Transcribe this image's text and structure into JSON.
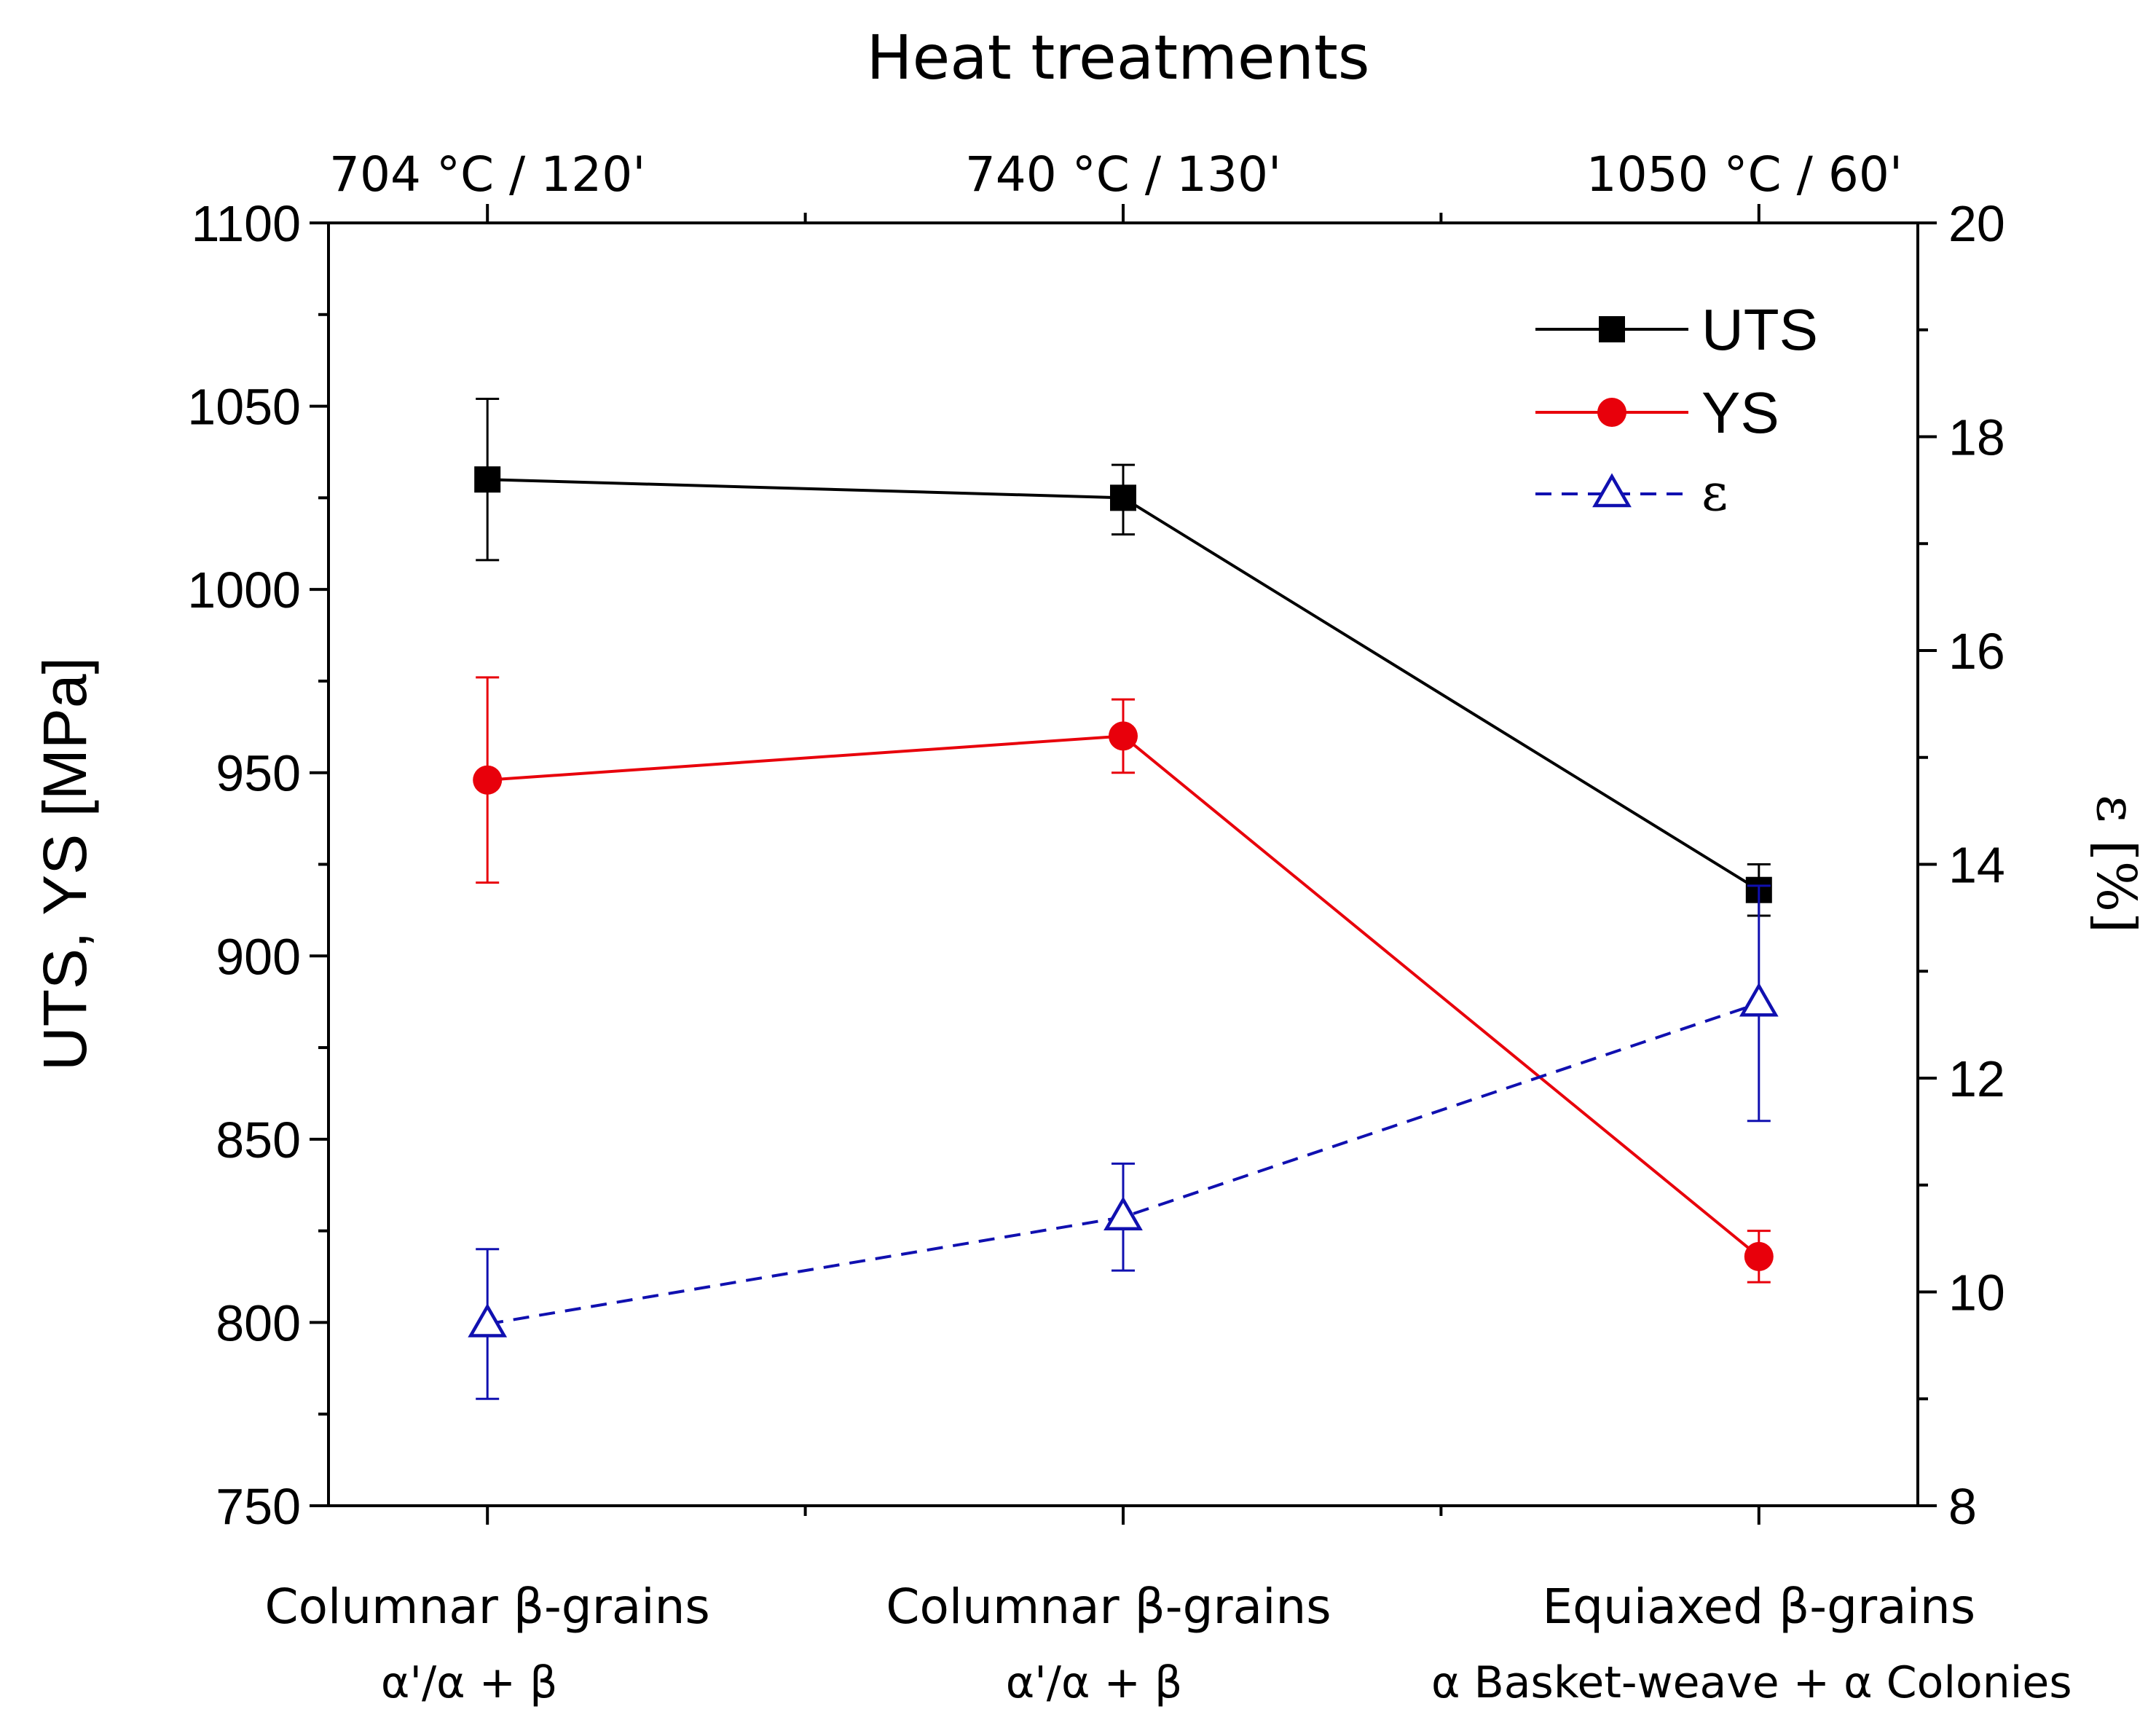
{
  "chart_data": {
    "type": "line",
    "title": "Heat treatments",
    "top_categories": [
      "704 °C / 120'",
      "740 °C / 130'",
      "1050 °C / 60'"
    ],
    "bottom_categories": [
      {
        "line1": "Columnar β-grains",
        "line2": "α'/α + β"
      },
      {
        "line1": "Columnar β-grains",
        "line2": "α'/α + β"
      },
      {
        "line1": "Equiaxed β-grains",
        "line2": "α Basket-weave + α Colonies"
      }
    ],
    "left_axis": {
      "label": "UTS, YS [MPa]",
      "min": 750,
      "max": 1100,
      "ticks": [
        750,
        800,
        850,
        900,
        950,
        1000,
        1050,
        1100
      ],
      "minor_step": 25
    },
    "right_axis": {
      "label": "ε [%]",
      "min": 8,
      "max": 20,
      "ticks": [
        8,
        10,
        12,
        14,
        16,
        18,
        20
      ],
      "minor_step": 1
    },
    "x_range": [
      -0.25,
      2.25
    ],
    "series": [
      {
        "name": "UTS",
        "axis": "left",
        "marker": "square",
        "color": "#000000",
        "dashed": false,
        "x": [
          0,
          1,
          2
        ],
        "values": [
          1030,
          1025,
          918
        ],
        "err_low": [
          1008,
          1015,
          911
        ],
        "err_high": [
          1052,
          1034,
          925
        ]
      },
      {
        "name": "YS",
        "axis": "left",
        "marker": "circle",
        "color": "#e8000b",
        "dashed": false,
        "x": [
          0,
          1,
          2
        ],
        "values": [
          948,
          960,
          818
        ],
        "err_low": [
          920,
          950,
          811
        ],
        "err_high": [
          976,
          970,
          825
        ]
      },
      {
        "name": "ε",
        "axis": "right",
        "marker": "triangle-open",
        "color": "#1010b0",
        "dashed": true,
        "x": [
          0,
          1,
          2
        ],
        "values": [
          9.7,
          10.7,
          12.7
        ],
        "err_low": [
          9.0,
          10.2,
          11.6
        ],
        "err_high": [
          10.4,
          11.2,
          13.8
        ]
      }
    ],
    "legend": {
      "position": "top-right",
      "entries": [
        "UTS",
        "YS",
        "ε"
      ]
    }
  }
}
